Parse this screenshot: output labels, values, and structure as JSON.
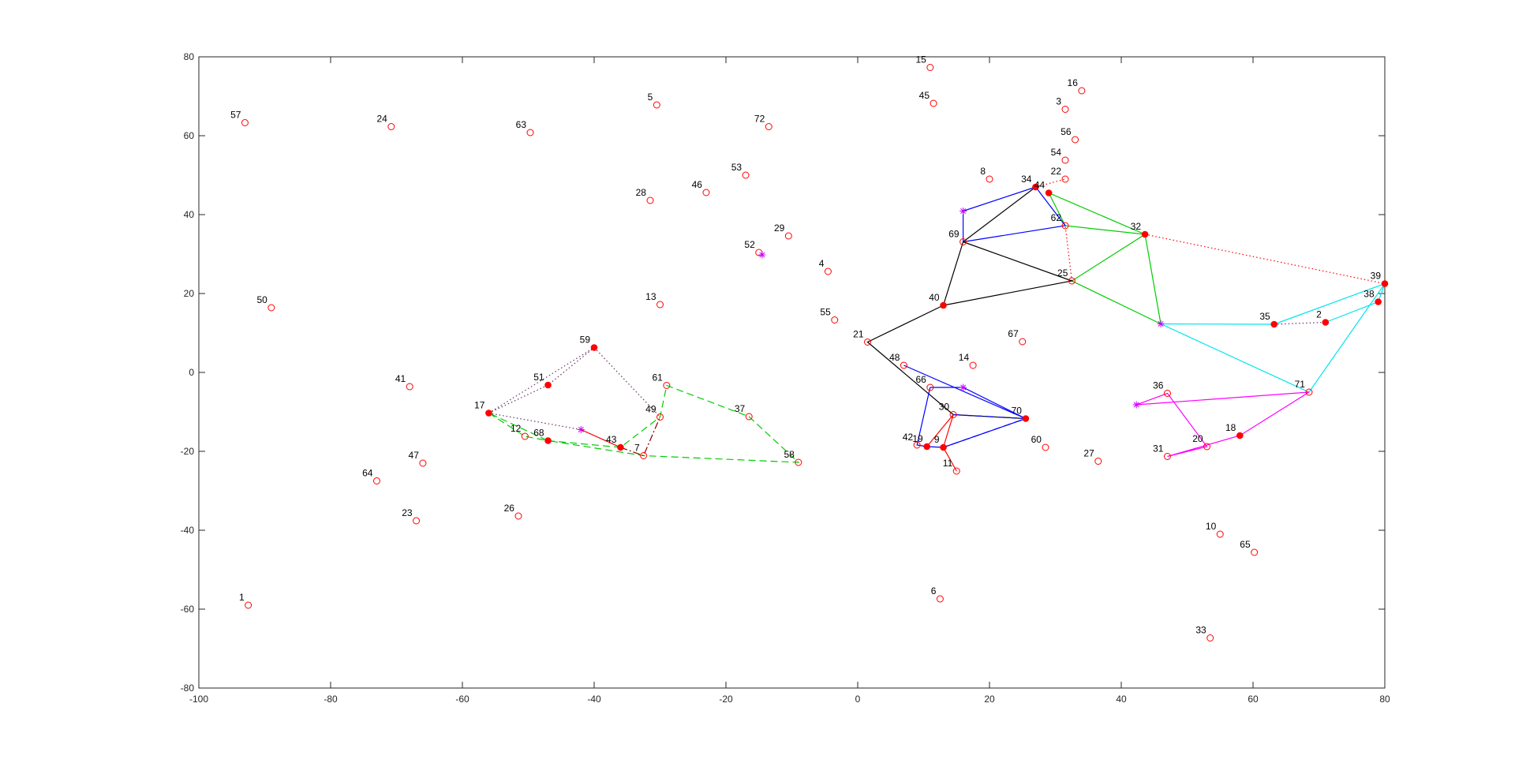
{
  "chart_data": {
    "type": "scatter",
    "title": "",
    "xlabel": "",
    "ylabel": "",
    "xlim": [
      -100,
      80
    ],
    "ylim": [
      -80,
      80
    ],
    "grid": false,
    "legend": "none",
    "xticks": [
      "-100",
      "-80",
      "-60",
      "-40",
      "-20",
      "0",
      "20",
      "40",
      "60",
      "80"
    ],
    "yticks": [
      "-80",
      "-60",
      "-40",
      "-20",
      "0",
      "20",
      "40",
      "60",
      "80"
    ],
    "xtick_values": [
      -100,
      -80,
      -60,
      -40,
      -20,
      0,
      20,
      40,
      60,
      80
    ],
    "ytick_values": [
      -80,
      -60,
      -40,
      -20,
      0,
      20,
      40,
      60,
      80
    ],
    "colors": {
      "node": "#ff0000",
      "head_fill": "#ff0000",
      "star": "#cc00ff",
      "black": "#000000",
      "green": "#00cc00",
      "blue": "#0000ff",
      "cyan": "#00e5ee",
      "magenta": "#ff00ff",
      "red": "#ff0000",
      "darkred": "#8b0000",
      "purple": "#663366"
    },
    "nodes": [
      {
        "id": "1",
        "x": -92.5,
        "y": -59
      },
      {
        "id": "2",
        "x": 71,
        "y": 12.7
      },
      {
        "id": "3",
        "x": 31.5,
        "y": 66.7
      },
      {
        "id": "4",
        "x": -4.5,
        "y": 25.6
      },
      {
        "id": "5",
        "x": -30.5,
        "y": 67.8
      },
      {
        "id": "6",
        "x": 12.5,
        "y": -57.4
      },
      {
        "id": "7",
        "x": -32.5,
        "y": -21.1
      },
      {
        "id": "8",
        "x": 20,
        "y": 49
      },
      {
        "id": "9",
        "x": 13,
        "y": -19
      },
      {
        "id": "10",
        "x": 55,
        "y": -41
      },
      {
        "id": "11",
        "x": 15,
        "y": -25
      },
      {
        "id": "12",
        "x": -50.5,
        "y": -16.2
      },
      {
        "id": "13",
        "x": -30,
        "y": 17.2
      },
      {
        "id": "14",
        "x": 17.5,
        "y": 1.8
      },
      {
        "id": "15",
        "x": 11,
        "y": 77.3
      },
      {
        "id": "16",
        "x": 34,
        "y": 71.4
      },
      {
        "id": "17",
        "x": -56,
        "y": -10.3
      },
      {
        "id": "18",
        "x": 58,
        "y": -16
      },
      {
        "id": "19",
        "x": 10.5,
        "y": -18.8
      },
      {
        "id": "20",
        "x": 53,
        "y": -18.8
      },
      {
        "id": "21",
        "x": 1.5,
        "y": 7.7
      },
      {
        "id": "22",
        "x": 31.5,
        "y": 49
      },
      {
        "id": "23",
        "x": -67,
        "y": -37.6
      },
      {
        "id": "24",
        "x": -70.8,
        "y": 62.3
      },
      {
        "id": "25",
        "x": 32.5,
        "y": 23.2
      },
      {
        "id": "26",
        "x": -51.5,
        "y": -36.4
      },
      {
        "id": "27",
        "x": 36.5,
        "y": -22.5
      },
      {
        "id": "28",
        "x": -31.5,
        "y": 43.6
      },
      {
        "id": "29",
        "x": -10.5,
        "y": 34.6
      },
      {
        "id": "30",
        "x": 14.5,
        "y": -10.7
      },
      {
        "id": "31",
        "x": 47,
        "y": -21.3
      },
      {
        "id": "32",
        "x": 43.6,
        "y": 35
      },
      {
        "id": "33",
        "x": 53.5,
        "y": -67.3
      },
      {
        "id": "34",
        "x": 27,
        "y": 47
      },
      {
        "id": "35",
        "x": 63.2,
        "y": 12.2
      },
      {
        "id": "36",
        "x": 47,
        "y": -5.3
      },
      {
        "id": "37",
        "x": -16.5,
        "y": -11.2
      },
      {
        "id": "38",
        "x": 79,
        "y": 17.9
      },
      {
        "id": "39",
        "x": 80,
        "y": 22.5
      },
      {
        "id": "40",
        "x": 13,
        "y": 17
      },
      {
        "id": "41",
        "x": -68,
        "y": -3.6
      },
      {
        "id": "42",
        "x": 9,
        "y": -18.4
      },
      {
        "id": "43",
        "x": -36,
        "y": -19
      },
      {
        "id": "44",
        "x": 29,
        "y": 45.5
      },
      {
        "id": "45",
        "x": 11.5,
        "y": 68.2
      },
      {
        "id": "46",
        "x": -23,
        "y": 45.6
      },
      {
        "id": "47",
        "x": -66,
        "y": -23
      },
      {
        "id": "48",
        "x": 7,
        "y": 1.8
      },
      {
        "id": "49",
        "x": -30,
        "y": -11.3
      },
      {
        "id": "50",
        "x": -89,
        "y": 16.4
      },
      {
        "id": "51",
        "x": -47,
        "y": -3.2
      },
      {
        "id": "52",
        "x": -15,
        "y": 30.4
      },
      {
        "id": "53",
        "x": -17,
        "y": 50
      },
      {
        "id": "54",
        "x": 31.5,
        "y": 53.8
      },
      {
        "id": "55",
        "x": -3.5,
        "y": 13.3
      },
      {
        "id": "56",
        "x": 33,
        "y": 59
      },
      {
        "id": "57",
        "x": -93,
        "y": 63.3
      },
      {
        "id": "58",
        "x": -9,
        "y": -22.8
      },
      {
        "id": "59",
        "x": -40,
        "y": 6.3
      },
      {
        "id": "60",
        "x": 28.5,
        "y": -19
      },
      {
        "id": "61",
        "x": -29,
        "y": -3.3
      },
      {
        "id": "62",
        "x": 31.5,
        "y": 37.2
      },
      {
        "id": "63",
        "x": -49.7,
        "y": 60.8
      },
      {
        "id": "64",
        "x": -73,
        "y": -27.5
      },
      {
        "id": "65",
        "x": 60.2,
        "y": -45.6
      },
      {
        "id": "66",
        "x": 11,
        "y": -3.8
      },
      {
        "id": "67",
        "x": 25,
        "y": 7.8
      },
      {
        "id": "68",
        "x": -47,
        "y": -17.3
      },
      {
        "id": "69",
        "x": 16,
        "y": 33.1
      },
      {
        "id": "70",
        "x": 25.5,
        "y": -11.7
      },
      {
        "id": "71",
        "x": 68.5,
        "y": -5
      },
      {
        "id": "72",
        "x": -13.5,
        "y": 62.3
      }
    ],
    "filled_nodes": [
      "2",
      "9",
      "17",
      "18",
      "19",
      "32",
      "34",
      "35",
      "38",
      "39",
      "40",
      "43",
      "44",
      "51",
      "59",
      "68",
      "70"
    ],
    "stars": [
      {
        "x": -42,
        "y": -14.5
      },
      {
        "x": 16,
        "y": 40.9
      },
      {
        "x": 16,
        "y": -3.8
      },
      {
        "x": -14.5,
        "y": 29.8
      },
      {
        "x": 46,
        "y": 12.3
      },
      {
        "x": 42.3,
        "y": -8.2
      }
    ],
    "paths": [
      {
        "color": "green",
        "dash": "",
        "points": [
          [
            29,
            45.5
          ],
          [
            43.6,
            35
          ],
          [
            46,
            12.3
          ],
          [
            32.5,
            23.2
          ],
          [
            43.6,
            35
          ],
          [
            31.5,
            37.2
          ],
          [
            29,
            45.5
          ]
        ]
      },
      {
        "color": "red",
        "dash": "dot",
        "points": [
          [
            43.6,
            35
          ],
          [
            80,
            22.5
          ]
        ]
      },
      {
        "color": "red",
        "dash": "dot",
        "points": [
          [
            32.5,
            23.2
          ],
          [
            31.5,
            37.2
          ]
        ]
      },
      {
        "color": "red",
        "dash": "dot",
        "points": [
          [
            27,
            47
          ],
          [
            31.5,
            49
          ]
        ]
      },
      {
        "color": "blue",
        "dash": "",
        "points": [
          [
            16,
            40.9
          ],
          [
            27,
            47
          ],
          [
            31.5,
            37.2
          ],
          [
            16,
            33.1
          ],
          [
            16,
            40.9
          ]
        ]
      },
      {
        "color": "black",
        "dash": "",
        "points": [
          [
            27,
            47
          ],
          [
            16,
            33.1
          ],
          [
            13,
            17
          ],
          [
            1.5,
            7.7
          ],
          [
            14.5,
            -10.7
          ],
          [
            25.5,
            -11.7
          ]
        ]
      },
      {
        "color": "black",
        "dash": "",
        "points": [
          [
            16,
            33.1
          ],
          [
            32.5,
            23.2
          ],
          [
            13,
            17
          ]
        ]
      },
      {
        "color": "blue",
        "dash": "",
        "points": [
          [
            11,
            -3.8
          ],
          [
            16,
            -3.8
          ],
          [
            25.5,
            -11.7
          ],
          [
            13,
            -19
          ],
          [
            10.5,
            -18.8
          ],
          [
            9,
            -18.4
          ],
          [
            11,
            -3.8
          ]
        ]
      },
      {
        "color": "blue",
        "dash": "",
        "points": [
          [
            7,
            1.8
          ],
          [
            25.5,
            -11.7
          ]
        ]
      },
      {
        "color": "blue",
        "dash": "dash",
        "points": [
          [
            14.5,
            -10.7
          ],
          [
            25.5,
            -11.7
          ],
          [
            13,
            -19
          ]
        ]
      },
      {
        "color": "red",
        "dash": "",
        "points": [
          [
            10.5,
            -18.8
          ],
          [
            14.5,
            -10.7
          ],
          [
            13,
            -19
          ],
          [
            15,
            -25
          ]
        ]
      },
      {
        "color": "cyan",
        "dash": "",
        "points": [
          [
            46,
            12.3
          ],
          [
            68.5,
            -5
          ],
          [
            80,
            22.5
          ],
          [
            63.2,
            12.2
          ],
          [
            46,
            12.3
          ]
        ]
      },
      {
        "color": "cyan",
        "dash": "",
        "points": [
          [
            71,
            12.7
          ],
          [
            79,
            17.9
          ],
          [
            80,
            22.5
          ]
        ]
      },
      {
        "color": "purple",
        "dash": "dot",
        "points": [
          [
            63.2,
            12.2
          ],
          [
            71,
            12.7
          ]
        ]
      },
      {
        "color": "magenta",
        "dash": "",
        "points": [
          [
            42.3,
            -8.2
          ],
          [
            68.5,
            -5
          ],
          [
            58,
            -16
          ],
          [
            47,
            -21.3
          ],
          [
            53,
            -18.8
          ],
          [
            47,
            -5.3
          ],
          [
            42.3,
            -8.2
          ]
        ]
      },
      {
        "color": "green",
        "dash": "dash",
        "points": [
          [
            -56,
            -10.3
          ],
          [
            -50.5,
            -16.2
          ],
          [
            -47,
            -17.3
          ],
          [
            -36,
            -19
          ],
          [
            -30,
            -11.3
          ],
          [
            -29,
            -3.3
          ],
          [
            -16.5,
            -11.2
          ],
          [
            -9,
            -22.8
          ],
          [
            -32.5,
            -21.1
          ],
          [
            -47,
            -17.3
          ],
          [
            -56,
            -10.3
          ]
        ]
      },
      {
        "color": "purple",
        "dash": "dot",
        "points": [
          [
            -56,
            -10.3
          ],
          [
            -40,
            6.3
          ],
          [
            -30,
            -11.3
          ]
        ]
      },
      {
        "color": "purple",
        "dash": "dot",
        "points": [
          [
            -56,
            -10.3
          ],
          [
            -47,
            -3.2
          ],
          [
            -40,
            6.3
          ]
        ]
      },
      {
        "color": "purple",
        "dash": "dot",
        "points": [
          [
            -56,
            -10.3
          ],
          [
            -42,
            -14.5
          ],
          [
            -36,
            -19
          ]
        ]
      },
      {
        "color": "darkred",
        "dash": "dashdot",
        "points": [
          [
            -36,
            -19
          ],
          [
            -32.5,
            -21.1
          ],
          [
            -30,
            -11.3
          ]
        ]
      },
      {
        "color": "red",
        "dash": "",
        "points": [
          [
            -42,
            -14.5
          ],
          [
            -36,
            -19
          ]
        ]
      }
    ]
  }
}
